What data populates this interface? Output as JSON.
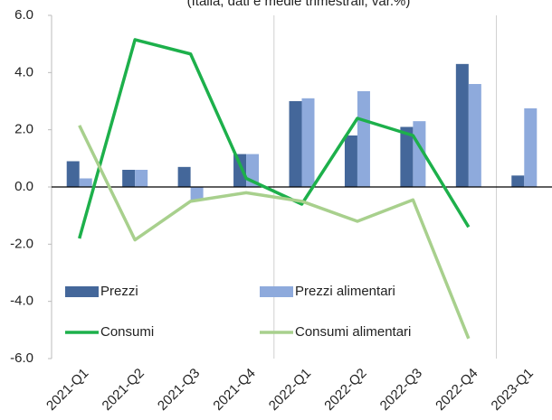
{
  "chart_data": {
    "type": "bar_line",
    "subtitle": "(Italia, dati e medie trimestrali; var.%)",
    "categories": [
      "2021-Q1",
      "2021-Q2",
      "2021-Q3",
      "2021-Q4",
      "2022-Q1",
      "2022-Q2",
      "2022-Q3",
      "2022-Q4",
      "2023-Q1"
    ],
    "series": [
      {
        "name": "Prezzi",
        "kind": "bar",
        "color": "#44679a",
        "values": [
          0.9,
          0.6,
          0.7,
          1.15,
          3.0,
          1.8,
          2.1,
          4.3,
          0.4
        ]
      },
      {
        "name": "Prezzi alimentari",
        "kind": "bar",
        "color": "#8eaadc",
        "values": [
          0.3,
          0.6,
          -0.45,
          1.15,
          3.1,
          3.35,
          2.3,
          3.6,
          2.75
        ]
      },
      {
        "name": "Consumi",
        "kind": "line",
        "color": "#1db04b",
        "values": [
          -1.8,
          5.15,
          4.65,
          0.3,
          -0.6,
          2.4,
          1.8,
          -1.4,
          null
        ]
      },
      {
        "name": "Consumi alimentari",
        "kind": "line",
        "color": "#a8d08d",
        "values": [
          2.15,
          -1.85,
          -0.5,
          -0.2,
          -0.5,
          -1.2,
          -0.45,
          -5.3,
          null
        ]
      }
    ],
    "ylim": [
      -6,
      6
    ],
    "yticks": [
      {
        "value": -6,
        "label": "-6.0"
      },
      {
        "value": -4,
        "label": "-4.0"
      },
      {
        "value": -2,
        "label": "-2.0"
      },
      {
        "value": 0,
        "label": "0.0"
      },
      {
        "value": 2,
        "label": "2.0"
      },
      {
        "value": 4,
        "label": "4.0"
      },
      {
        "value": 6,
        "label": "6.0"
      }
    ],
    "legend": "lower left"
  }
}
